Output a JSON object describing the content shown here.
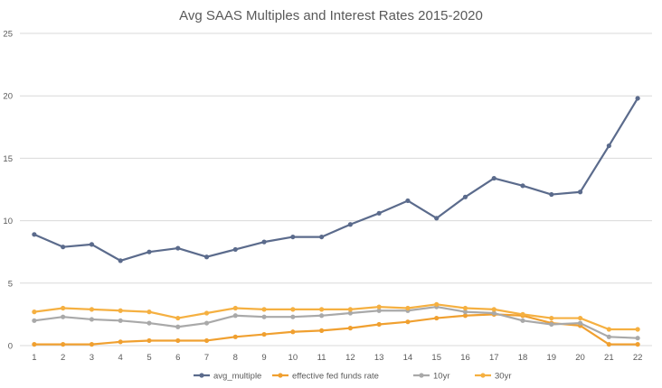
{
  "chart_data": {
    "type": "line",
    "title": "Avg SAAS Multiples and Interest Rates 2015-2020",
    "xlabel": "",
    "ylabel": "",
    "categories": [
      "1",
      "2",
      "3",
      "4",
      "5",
      "6",
      "7",
      "8",
      "9",
      "10",
      "11",
      "12",
      "13",
      "14",
      "15",
      "16",
      "17",
      "18",
      "19",
      "20",
      "21",
      "22"
    ],
    "ylim": [
      0,
      25
    ],
    "yticks": [
      "0",
      "5",
      "10",
      "15",
      "20",
      "25"
    ],
    "grid": true,
    "legend_position": "bottom",
    "series": [
      {
        "name": "avg_multiple",
        "color": "#5b6b8c",
        "values": [
          8.9,
          7.9,
          8.1,
          6.8,
          7.5,
          7.8,
          7.1,
          7.7,
          8.3,
          8.7,
          8.7,
          9.7,
          10.6,
          11.6,
          10.2,
          11.9,
          13.4,
          12.8,
          12.1,
          12.3,
          16.0,
          19.8
        ]
      },
      {
        "name": "effective fed funds rate",
        "color": "#f0a030",
        "values": [
          0.1,
          0.1,
          0.1,
          0.3,
          0.4,
          0.4,
          0.4,
          0.7,
          0.9,
          1.1,
          1.2,
          1.4,
          1.7,
          1.9,
          2.2,
          2.4,
          2.5,
          2.4,
          1.8,
          1.6,
          0.1,
          0.1
        ]
      },
      {
        "name": "10yr",
        "color": "#a9a9a9",
        "values": [
          2.0,
          2.3,
          2.1,
          2.0,
          1.8,
          1.5,
          1.8,
          2.4,
          2.3,
          2.3,
          2.4,
          2.6,
          2.8,
          2.8,
          3.1,
          2.7,
          2.6,
          2.0,
          1.7,
          1.8,
          0.7,
          0.6
        ]
      },
      {
        "name": "30yr",
        "color": "#f5b041",
        "values": [
          2.7,
          3.0,
          2.9,
          2.8,
          2.7,
          2.2,
          2.6,
          3.0,
          2.9,
          2.9,
          2.9,
          2.9,
          3.1,
          3.0,
          3.3,
          3.0,
          2.9,
          2.5,
          2.2,
          2.2,
          1.3,
          1.3
        ]
      }
    ]
  }
}
